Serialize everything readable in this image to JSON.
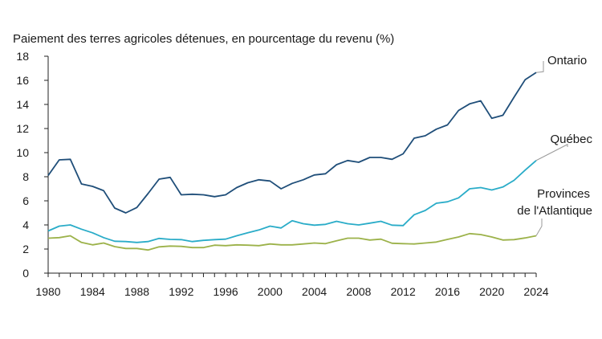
{
  "chart_data": {
    "type": "line",
    "title": "Paiement des terres agricoles détenues, en pourcentage du revenu (%)",
    "xlabel": "",
    "ylabel": "",
    "xlim": [
      1980,
      2024
    ],
    "ylim": [
      0,
      18
    ],
    "x_ticks": [
      1980,
      1984,
      1988,
      1992,
      1996,
      2000,
      2004,
      2008,
      2012,
      2016,
      2020,
      2024
    ],
    "y_ticks": [
      0,
      2,
      4,
      6,
      8,
      10,
      12,
      14,
      16,
      18
    ],
    "grid": false,
    "legend": "direct labels at line ends",
    "x": [
      1980,
      1981,
      1982,
      1983,
      1984,
      1985,
      1986,
      1987,
      1988,
      1989,
      1990,
      1991,
      1992,
      1993,
      1994,
      1995,
      1996,
      1997,
      1998,
      1999,
      2000,
      2001,
      2002,
      2003,
      2004,
      2005,
      2006,
      2007,
      2008,
      2009,
      2010,
      2011,
      2012,
      2013,
      2014,
      2015,
      2016,
      2017,
      2018,
      2019,
      2020,
      2021,
      2022,
      2023,
      2024
    ],
    "series": [
      {
        "name": "Ontario",
        "label_lines": [
          "Ontario"
        ],
        "color": "#1f4e79",
        "values": [
          8.1,
          9.4,
          9.45,
          7.4,
          7.2,
          6.85,
          5.4,
          5.0,
          5.45,
          6.6,
          7.8,
          7.95,
          6.5,
          6.55,
          6.5,
          6.35,
          6.5,
          7.1,
          7.5,
          7.75,
          7.65,
          7.0,
          7.45,
          7.75,
          8.15,
          8.25,
          9.0,
          9.35,
          9.2,
          9.6,
          9.6,
          9.45,
          9.9,
          11.2,
          11.4,
          11.95,
          12.3,
          13.5,
          14.05,
          14.3,
          12.85,
          13.1,
          14.6,
          16.05,
          16.65
        ]
      },
      {
        "name": "Québec",
        "label_lines": [
          "Québec"
        ],
        "color": "#2aacc8",
        "values": [
          3.5,
          3.9,
          4.0,
          3.65,
          3.35,
          2.95,
          2.65,
          2.62,
          2.55,
          2.62,
          2.88,
          2.8,
          2.78,
          2.62,
          2.72,
          2.78,
          2.82,
          3.1,
          3.35,
          3.58,
          3.9,
          3.75,
          4.35,
          4.1,
          3.98,
          4.05,
          4.3,
          4.1,
          4.0,
          4.15,
          4.3,
          3.98,
          3.95,
          4.85,
          5.2,
          5.8,
          5.92,
          6.25,
          7.0,
          7.1,
          6.9,
          7.15,
          7.7,
          8.55,
          9.35
        ]
      },
      {
        "name": "Provinces de l'Atlantique",
        "label_lines": [
          "Provinces",
          "de l'Atlantique"
        ],
        "color": "#9cb24a",
        "values": [
          2.9,
          2.95,
          3.1,
          2.55,
          2.35,
          2.5,
          2.2,
          2.05,
          2.05,
          1.92,
          2.18,
          2.25,
          2.22,
          2.12,
          2.12,
          2.32,
          2.28,
          2.35,
          2.32,
          2.28,
          2.42,
          2.35,
          2.35,
          2.42,
          2.5,
          2.45,
          2.68,
          2.9,
          2.9,
          2.75,
          2.82,
          2.48,
          2.45,
          2.42,
          2.5,
          2.58,
          2.8,
          3.0,
          3.28,
          3.2,
          3.0,
          2.75,
          2.78,
          2.92,
          3.1
        ]
      }
    ]
  },
  "colors": {
    "ontario": "#1f4e79",
    "quebec": "#2aacc8",
    "atlantique": "#9cb24a",
    "axis": "#222222",
    "leader": "#9a9a9a"
  }
}
